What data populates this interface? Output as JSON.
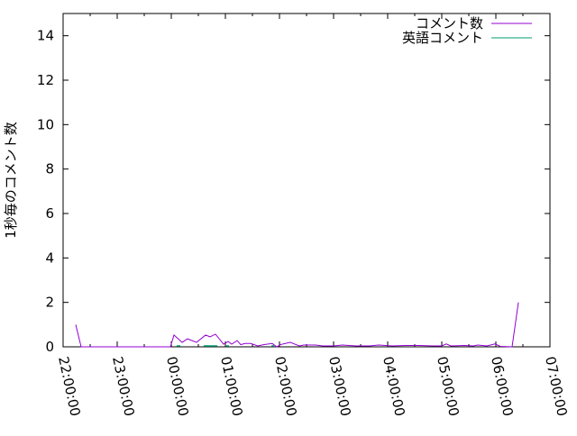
{
  "chart_data": {
    "type": "line",
    "title": "",
    "xlabel": "",
    "ylabel": "1秒毎のコメント数",
    "xlim": [
      "22:00:00",
      "07:00:00"
    ],
    "ylim": [
      0,
      15
    ],
    "x_tick_labels": [
      "22:00:00",
      "23:00:00",
      "00:00:00",
      "01:00:00",
      "02:00:00",
      "03:00:00",
      "04:00:00",
      "05:00:00",
      "06:00:00",
      "07:00:00"
    ],
    "y_tick_labels": [
      "0",
      "2",
      "4",
      "6",
      "8",
      "10",
      "12",
      "14"
    ],
    "y_ticks": [
      0,
      2,
      4,
      6,
      8,
      10,
      12,
      14
    ],
    "grid": false,
    "legend_position": "top-right",
    "series": [
      {
        "name": "コメント数",
        "color": "#9400d3",
        "points": [
          [
            "22:14",
            1.0
          ],
          [
            "22:20",
            0
          ],
          [
            "23:51",
            0
          ],
          [
            "23:59",
            0
          ],
          [
            "00:03",
            0.53
          ],
          [
            "00:12",
            0.2
          ],
          [
            "00:18",
            0.36
          ],
          [
            "00:28",
            0.2
          ],
          [
            "00:38",
            0.53
          ],
          [
            "00:43",
            0.45
          ],
          [
            "00:49",
            0.57
          ],
          [
            "00:58",
            0.12
          ],
          [
            "01:03",
            0.24
          ],
          [
            "01:07",
            0.12
          ],
          [
            "01:13",
            0.28
          ],
          [
            "01:17",
            0.1
          ],
          [
            "01:22",
            0.15
          ],
          [
            "01:28",
            0.15
          ],
          [
            "01:36",
            0.04
          ],
          [
            "01:43",
            0.1
          ],
          [
            "01:52",
            0.15
          ],
          [
            "01:57",
            0
          ],
          [
            "02:01",
            0.1
          ],
          [
            "02:12",
            0.2
          ],
          [
            "02:22",
            0.04
          ],
          [
            "02:27",
            0.08
          ],
          [
            "02:40",
            0.08
          ],
          [
            "02:48",
            0.04
          ],
          [
            "03:00",
            0.04
          ],
          [
            "03:10",
            0.08
          ],
          [
            "03:25",
            0.04
          ],
          [
            "03:40",
            0.04
          ],
          [
            "03:50",
            0.08
          ],
          [
            "04:05",
            0.04
          ],
          [
            "04:20",
            0.06
          ],
          [
            "04:35",
            0.06
          ],
          [
            "04:50",
            0.04
          ],
          [
            "05:00",
            0.04
          ],
          [
            "05:05",
            0.13
          ],
          [
            "05:10",
            0.04
          ],
          [
            "05:25",
            0.06
          ],
          [
            "05:35",
            0.04
          ],
          [
            "05:40",
            0.08
          ],
          [
            "05:50",
            0.04
          ],
          [
            "05:59",
            0.13
          ],
          [
            "06:05",
            0.02
          ],
          [
            "06:18",
            0
          ],
          [
            "06:25",
            2.0
          ]
        ]
      },
      {
        "name": "英語コメント",
        "color": "#009e73",
        "segments": [
          [
            [
              "00:06",
              0
            ],
            [
              "00:10",
              0
            ]
          ],
          [
            [
              "00:36",
              0
            ],
            [
              "00:51",
              0
            ]
          ],
          [
            [
              "01:01",
              0
            ],
            [
              "01:04",
              0
            ]
          ],
          [
            [
              "01:51",
              0
            ],
            [
              "01:54",
              0
            ]
          ]
        ]
      }
    ]
  }
}
